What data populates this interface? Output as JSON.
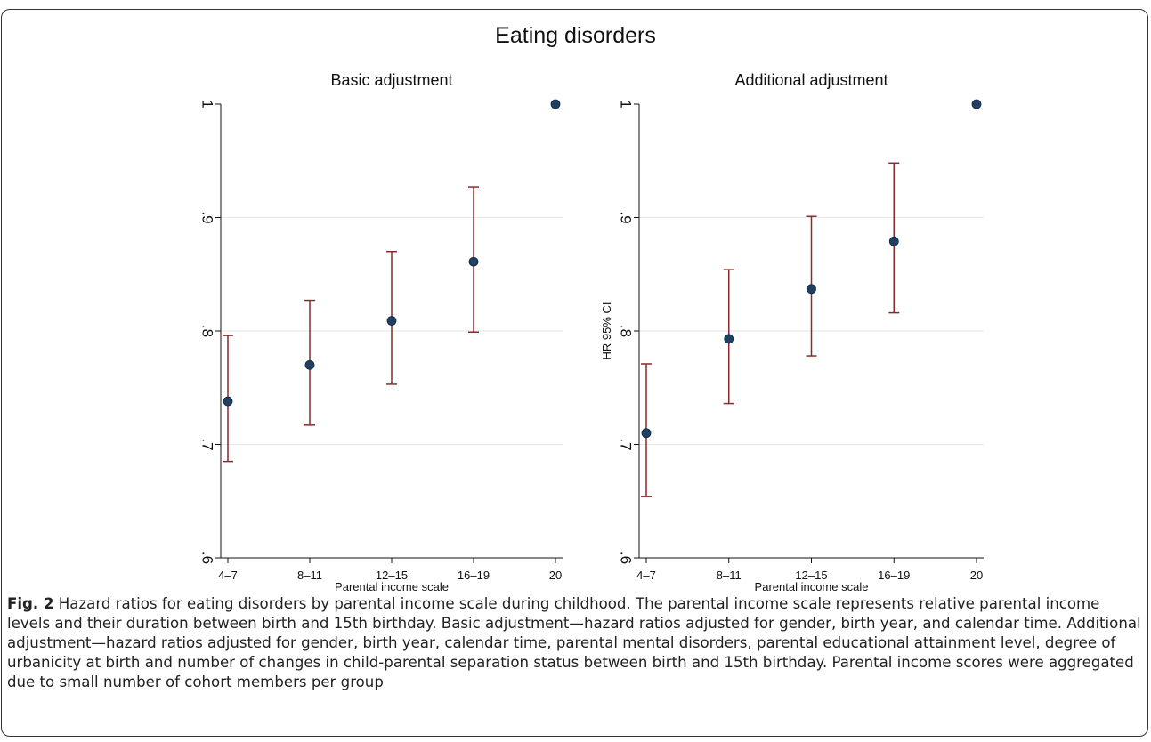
{
  "figure": {
    "title": "Eating disorders",
    "caption_label": "Fig. 2",
    "caption_text": " Hazard ratios for eating disorders by parental income scale during childhood. The parental income scale represents relative parental income levels and their duration between birth and 15th birthday. Basic adjustment—hazard ratios adjusted for gender, birth year, and calendar time. Additional adjustment—hazard ratios adjusted for gender, birth year, calendar time, parental mental disorders, parental educational attainment level, degree of urbanicity at birth and number of changes in child-parental separation status between birth and 15th birthday. Parental income scores were aggregated due to small number of cohort members per group"
  },
  "colors": {
    "ci": "#8b2a2a",
    "point": "#1f4063",
    "grid": "#e6e6e6",
    "axis": "#111111"
  },
  "chart_data": [
    {
      "type": "scatter",
      "title": "Basic adjustment",
      "xlabel": "Parental income scale",
      "ylabel": "HR 95% CI",
      "categories": [
        "4–7",
        "8–11",
        "12–15",
        "16–19",
        "20"
      ],
      "estimates": [
        0.738,
        0.77,
        0.809,
        0.861,
        1.0
      ],
      "ci_lower": [
        0.685,
        0.717,
        0.753,
        0.799,
        null
      ],
      "ci_upper": [
        0.796,
        0.827,
        0.87,
        0.927,
        null
      ],
      "ylim": [
        0.6,
        1.0
      ],
      "yticks": [
        0.6,
        0.7,
        0.8,
        0.9,
        1.0
      ],
      "ytick_labels": [
        ".6",
        ".7",
        ".8",
        ".9",
        "1"
      ],
      "grid": true,
      "show_ylabel": false
    },
    {
      "type": "scatter",
      "title": "Additional adjustment",
      "xlabel": "Parental income scale",
      "ylabel": "HR 95% CI",
      "categories": [
        "4–7",
        "8–11",
        "12–15",
        "16–19",
        "20"
      ],
      "estimates": [
        0.71,
        0.793,
        0.837,
        0.879,
        1.0
      ],
      "ci_lower": [
        0.654,
        0.736,
        0.778,
        0.816,
        null
      ],
      "ci_upper": [
        0.771,
        0.854,
        0.901,
        0.948,
        null
      ],
      "ylim": [
        0.6,
        1.0
      ],
      "yticks": [
        0.6,
        0.7,
        0.8,
        0.9,
        1.0
      ],
      "ytick_labels": [
        ".6",
        ".7",
        ".8",
        ".9",
        "1"
      ],
      "grid": true,
      "show_ylabel": true
    }
  ]
}
